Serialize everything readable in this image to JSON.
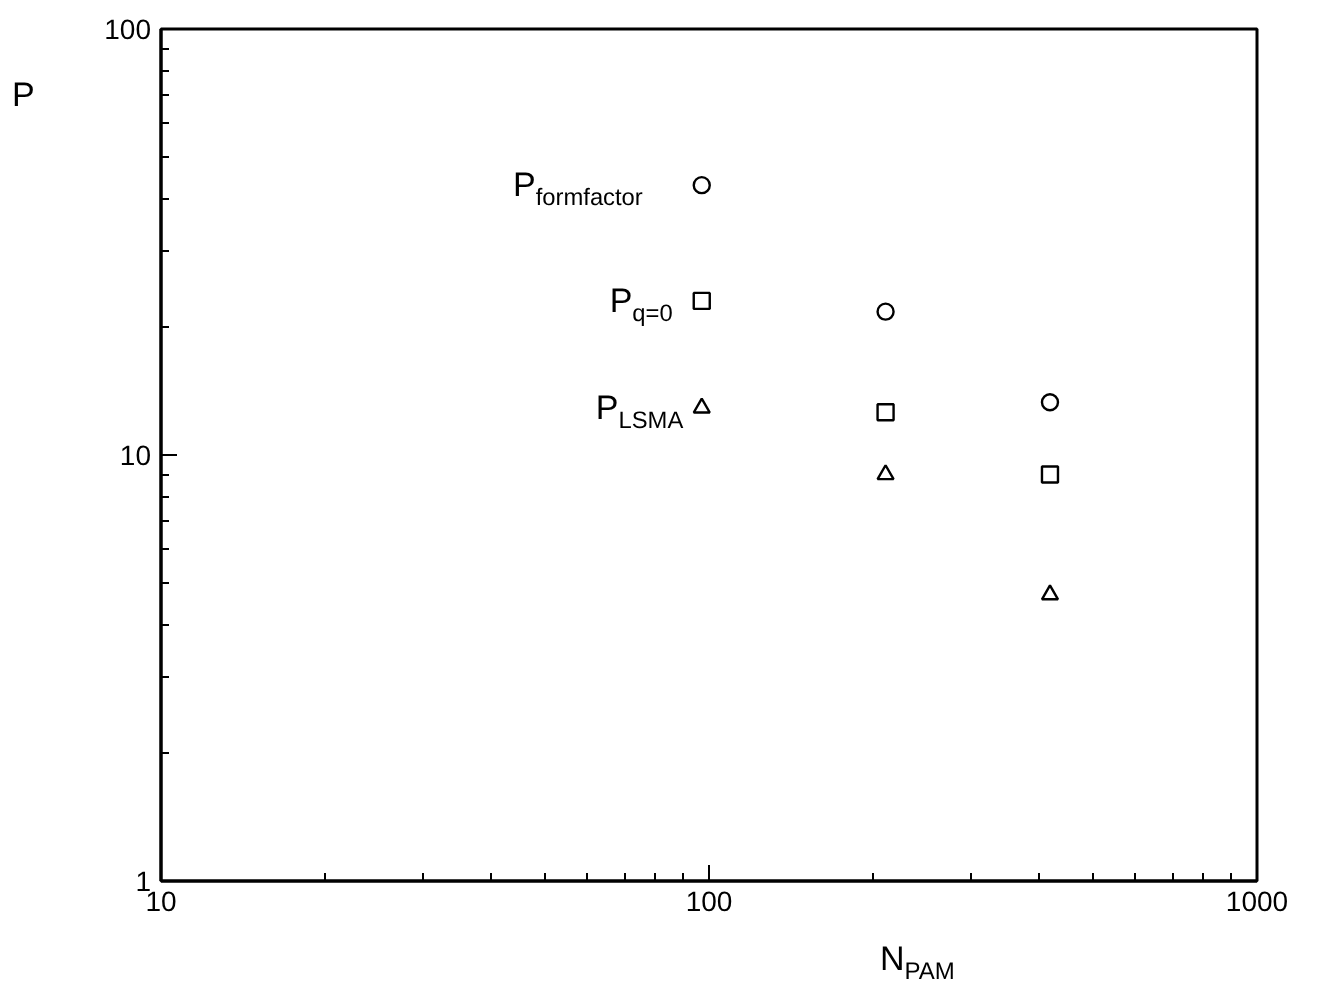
{
  "chart_data": {
    "type": "scatter",
    "xlabel": "N$_{PAM}$",
    "ylabel": "P",
    "log": "xy",
    "x": [
      97,
      210,
      419
    ],
    "series": [
      {
        "name": "P$_{formfactor}$",
        "color": "#000000",
        "marker": "circle",
        "values": [
          43,
          21.7,
          13.3
        ]
      },
      {
        "name": "P$_{q=0}$",
        "color": "#000000",
        "marker": "square",
        "values": [
          23,
          12.6,
          9.0
        ]
      },
      {
        "name": "P$_{LSMA}$",
        "color": "#000000",
        "marker": "triangle",
        "values": [
          12.9,
          9.0,
          4.7
        ]
      }
    ],
    "xlim": [
      10,
      1000
    ],
    "ylim": [
      1,
      100
    ],
    "xticks": [
      10,
      100,
      1000
    ],
    "yticks": [
      1,
      10,
      100
    ],
    "grid": false
  }
}
